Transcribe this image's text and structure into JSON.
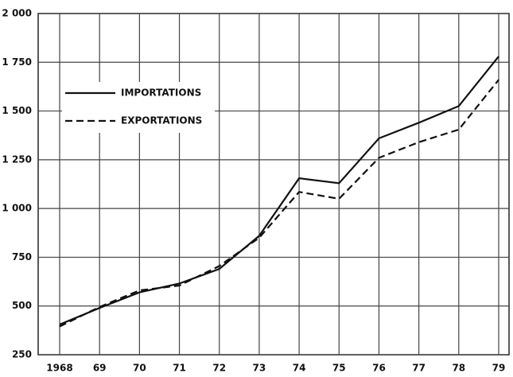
{
  "chart_data": {
    "type": "line",
    "categories": [
      "1968",
      "69",
      "70",
      "71",
      "72",
      "73",
      "74",
      "75",
      "76",
      "77",
      "78",
      "79"
    ],
    "series": [
      {
        "name": "IMPORTATIONS",
        "color": "#111111",
        "style": "solid",
        "values": [
          405,
          490,
          570,
          615,
          690,
          860,
          1155,
          1130,
          1360,
          1440,
          1525,
          1780
        ]
      },
      {
        "name": "EXPORTATIONS",
        "color": "#111111",
        "style": "dashed",
        "values": [
          395,
          495,
          580,
          605,
          705,
          850,
          1085,
          1050,
          1260,
          1340,
          1405,
          1660
        ]
      }
    ],
    "ylim": [
      250,
      2000
    ],
    "yticks": [
      {
        "value": 250,
        "label": "250"
      },
      500,
      750,
      {
        "value": 1000,
        "label": "1 000"
      },
      {
        "value": 1250,
        "label": "1 250"
      },
      {
        "value": 1500,
        "label": "1 500"
      },
      {
        "value": 1750,
        "label": "1 750"
      },
      {
        "value": 2000,
        "label": "2 000"
      }
    ],
    "grid": true,
    "legend": "upper left"
  }
}
